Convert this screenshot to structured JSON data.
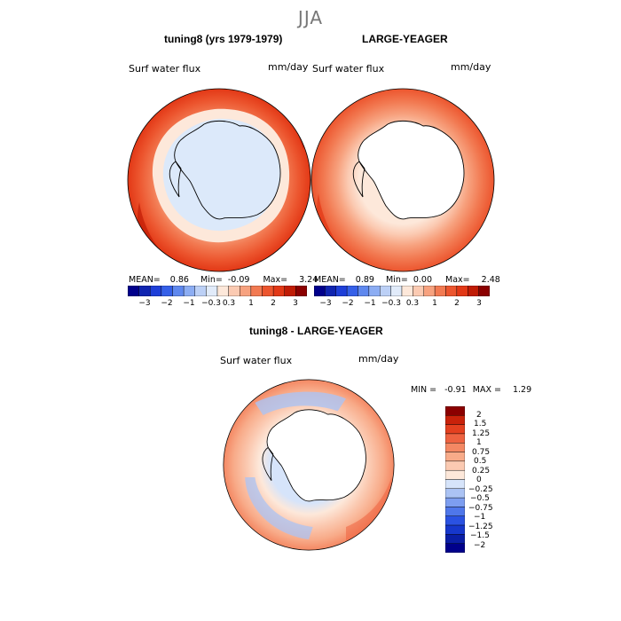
{
  "season": "JJA",
  "colors": {
    "palette": [
      "#00008b",
      "#0f24b0",
      "#1e3fd8",
      "#3560e8",
      "#5f88ee",
      "#8cadf3",
      "#bcd0f6",
      "#e1ebfa",
      "#fde8da",
      "#fbcab2",
      "#f7a27f",
      "#f27a52",
      "#ec552e",
      "#e23816",
      "#c01c05",
      "#8b0000"
    ],
    "diff_palette": [
      "#00008b",
      "#0a1ea6",
      "#1637cc",
      "#2a52e2",
      "#4f77ea",
      "#7d9ef0",
      "#abc3f4",
      "#d6e4fa",
      "#fde8da",
      "#fbcab2",
      "#f8ab89",
      "#f48863",
      "#ee6240",
      "#e4401f",
      "#c9220a",
      "#8b0000"
    ],
    "continent": "#ffffff",
    "continent_model": "#dce9fa"
  },
  "panels": [
    {
      "title": "tuning8 (yrs 1979-1979)",
      "variable": "Surf water flux",
      "unit": "mm/day",
      "stats": {
        "mean_label": "MEAN=",
        "mean": "0.86",
        "min_label": "Min=",
        "min": "-0.09",
        "max_label": "Max=",
        "max": "3.24"
      }
    },
    {
      "title": "LARGE-YEAGER",
      "variable": "Surf water flux",
      "unit": "mm/day",
      "stats": {
        "mean_label": "MEAN=",
        "mean": "0.89",
        "min_label": "Min=",
        "min": "0.00",
        "max_label": "Max=",
        "max": "2.48"
      }
    },
    {
      "title": "tuning8 - LARGE-YEAGER",
      "variable": "Surf water flux",
      "unit": "mm/day",
      "stats": {
        "min_label": "MIN =",
        "min": "-0.91",
        "max_label": "MAX =",
        "max": "1.29"
      }
    }
  ],
  "colorbar_main": {
    "tick_labels": [
      "−3",
      "−2",
      "−1",
      "−0.3",
      "0.3",
      "1",
      "2",
      "3"
    ]
  },
  "colorbar_diff": {
    "tick_labels": [
      "2",
      "1.5",
      "1.25",
      "1",
      "0.75",
      "0.5",
      "0.25",
      "0",
      "−0.25",
      "−0.5",
      "−0.75",
      "−1",
      "−1.25",
      "−1.5",
      "−2"
    ]
  }
}
